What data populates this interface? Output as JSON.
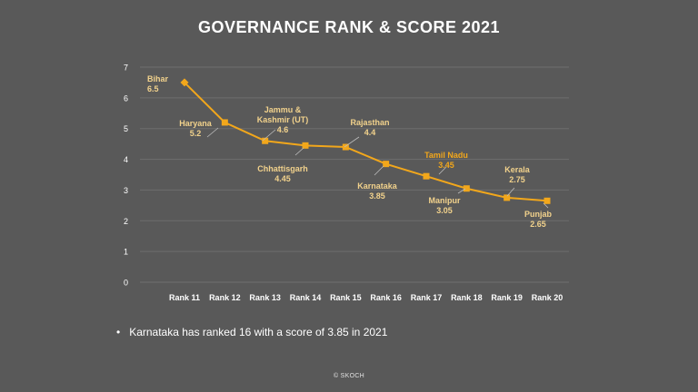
{
  "chart_data": {
    "type": "line",
    "title": "GOVERNANCE RANK & SCORE 2021",
    "categories": [
      "Rank 11",
      "Rank 12",
      "Rank 13",
      "Rank 14",
      "Rank 15",
      "Rank 16",
      "Rank 17",
      "Rank 18",
      "Rank 19",
      "Rank 20"
    ],
    "series": [
      {
        "values": [
          6.5,
          5.2,
          4.6,
          4.45,
          4.4,
          3.85,
          3.45,
          3.05,
          2.75,
          2.65
        ],
        "point_labels": [
          "Bihar",
          "Haryana",
          "Jammu &\nKashmir (UT)",
          "Chhattisgarh",
          "Rajasthan",
          "Karnataka",
          "Tamil Nadu",
          "Manipur",
          "Kerala",
          "Punjab"
        ],
        "value_labels": [
          "6.5",
          "5.2",
          "4.6",
          "4.45",
          "4.4",
          "3.85",
          "3.45",
          "3.05",
          "2.75",
          "2.65"
        ]
      }
    ],
    "yticks": [
      "0",
      "1",
      "2",
      "3",
      "4",
      "5",
      "6",
      "7"
    ],
    "ylim": [
      0,
      7
    ],
    "grid": true,
    "colors": {
      "line": "#f2a71b",
      "label": "#f2d28c",
      "highlight_label": "#f2a71b",
      "grid": "#6e6e6e"
    }
  },
  "note": "Karnataka has ranked 16 with a score of 3.85 in 2021",
  "bullet": "•",
  "footer": "© SKOCH"
}
